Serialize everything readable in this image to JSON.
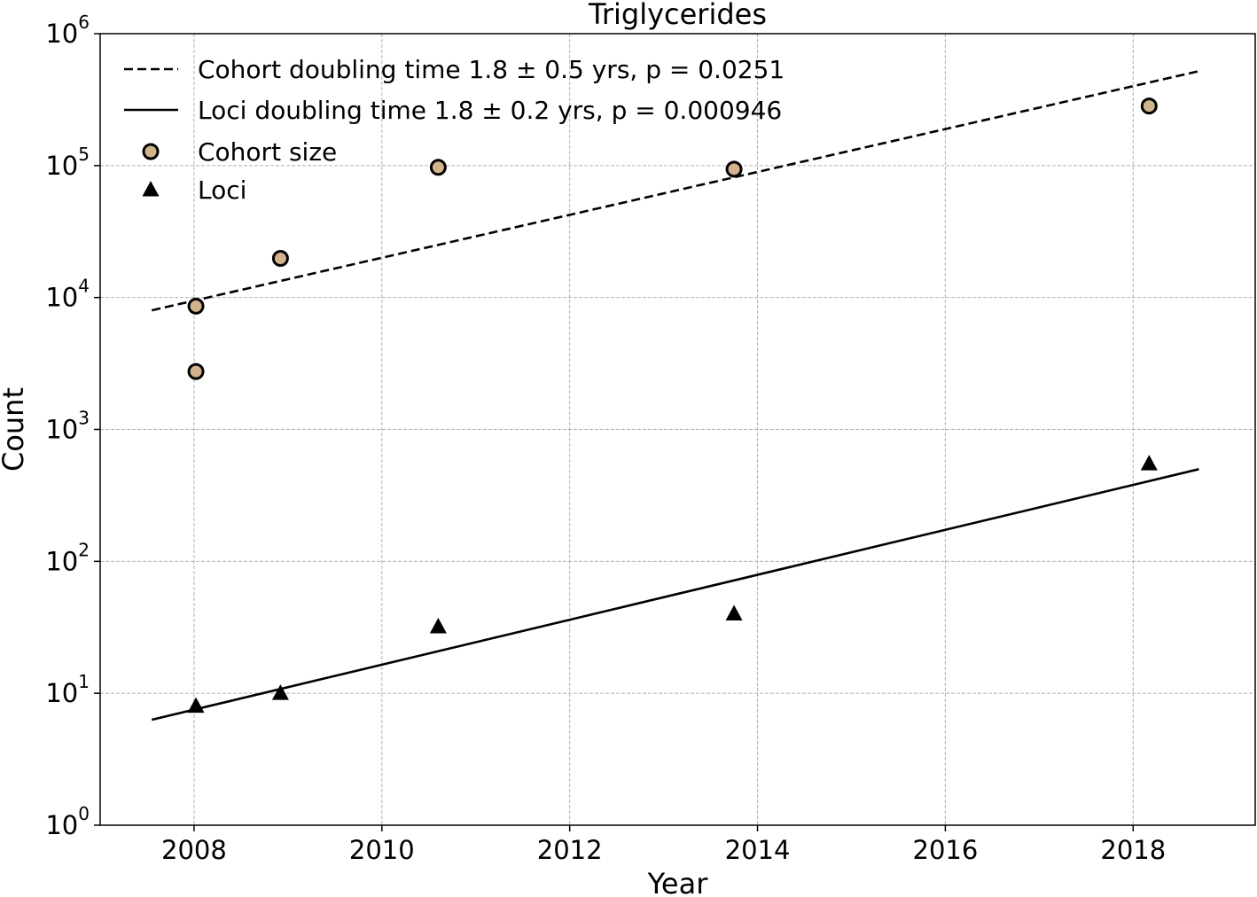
{
  "chart_data": {
    "type": "scatter",
    "title": "Triglycerides",
    "xlabel": "Year",
    "ylabel": "Count",
    "xlim": [
      2007,
      2019.3
    ],
    "ylim": [
      1,
      1000000
    ],
    "yscale": "log",
    "grid": true,
    "legend_position": "top-left",
    "x_ticks": [
      2008,
      2010,
      2012,
      2014,
      2016,
      2018
    ],
    "x_tick_labels": [
      "2008",
      "2010",
      "2012",
      "2014",
      "2016",
      "2018"
    ],
    "y_ticks": [
      {
        "value": 1,
        "base": "10",
        "exp": "0"
      },
      {
        "value": 10,
        "base": "10",
        "exp": "1"
      },
      {
        "value": 100,
        "base": "10",
        "exp": "2"
      },
      {
        "value": 1000,
        "base": "10",
        "exp": "3"
      },
      {
        "value": 10000,
        "base": "10",
        "exp": "4"
      },
      {
        "value": 100000,
        "base": "10",
        "exp": "5"
      },
      {
        "value": 1000000,
        "base": "10",
        "exp": "6"
      }
    ],
    "series": [
      {
        "name": "Cohort doubling time 1.8 ± 0.5 yrs, p = 0.0251",
        "kind": "line",
        "style": "dashed",
        "color": "#000000",
        "x": [
          2007.55,
          2018.7
        ],
        "y": [
          8000,
          520000
        ]
      },
      {
        "name": "Loci doubling time 1.8 ± 0.2 yrs, p = 0.000946",
        "kind": "line",
        "style": "solid",
        "color": "#000000",
        "x": [
          2007.55,
          2018.7
        ],
        "y": [
          6.3,
          500
        ]
      },
      {
        "name": "Cohort size",
        "kind": "scatter",
        "marker": "circle",
        "color": "#d2b48c",
        "x": [
          2008.02,
          2008.02,
          2008.92,
          2010.6,
          2013.75,
          2018.17
        ],
        "y": [
          2750,
          8600,
          19800,
          97000,
          94000,
          283000
        ]
      },
      {
        "name": "Loci",
        "kind": "scatter",
        "marker": "triangle",
        "color": "#000000",
        "x": [
          2008.02,
          2008.92,
          2010.6,
          2013.75,
          2018.17
        ],
        "y": [
          8,
          10,
          32,
          40,
          550
        ]
      }
    ]
  }
}
